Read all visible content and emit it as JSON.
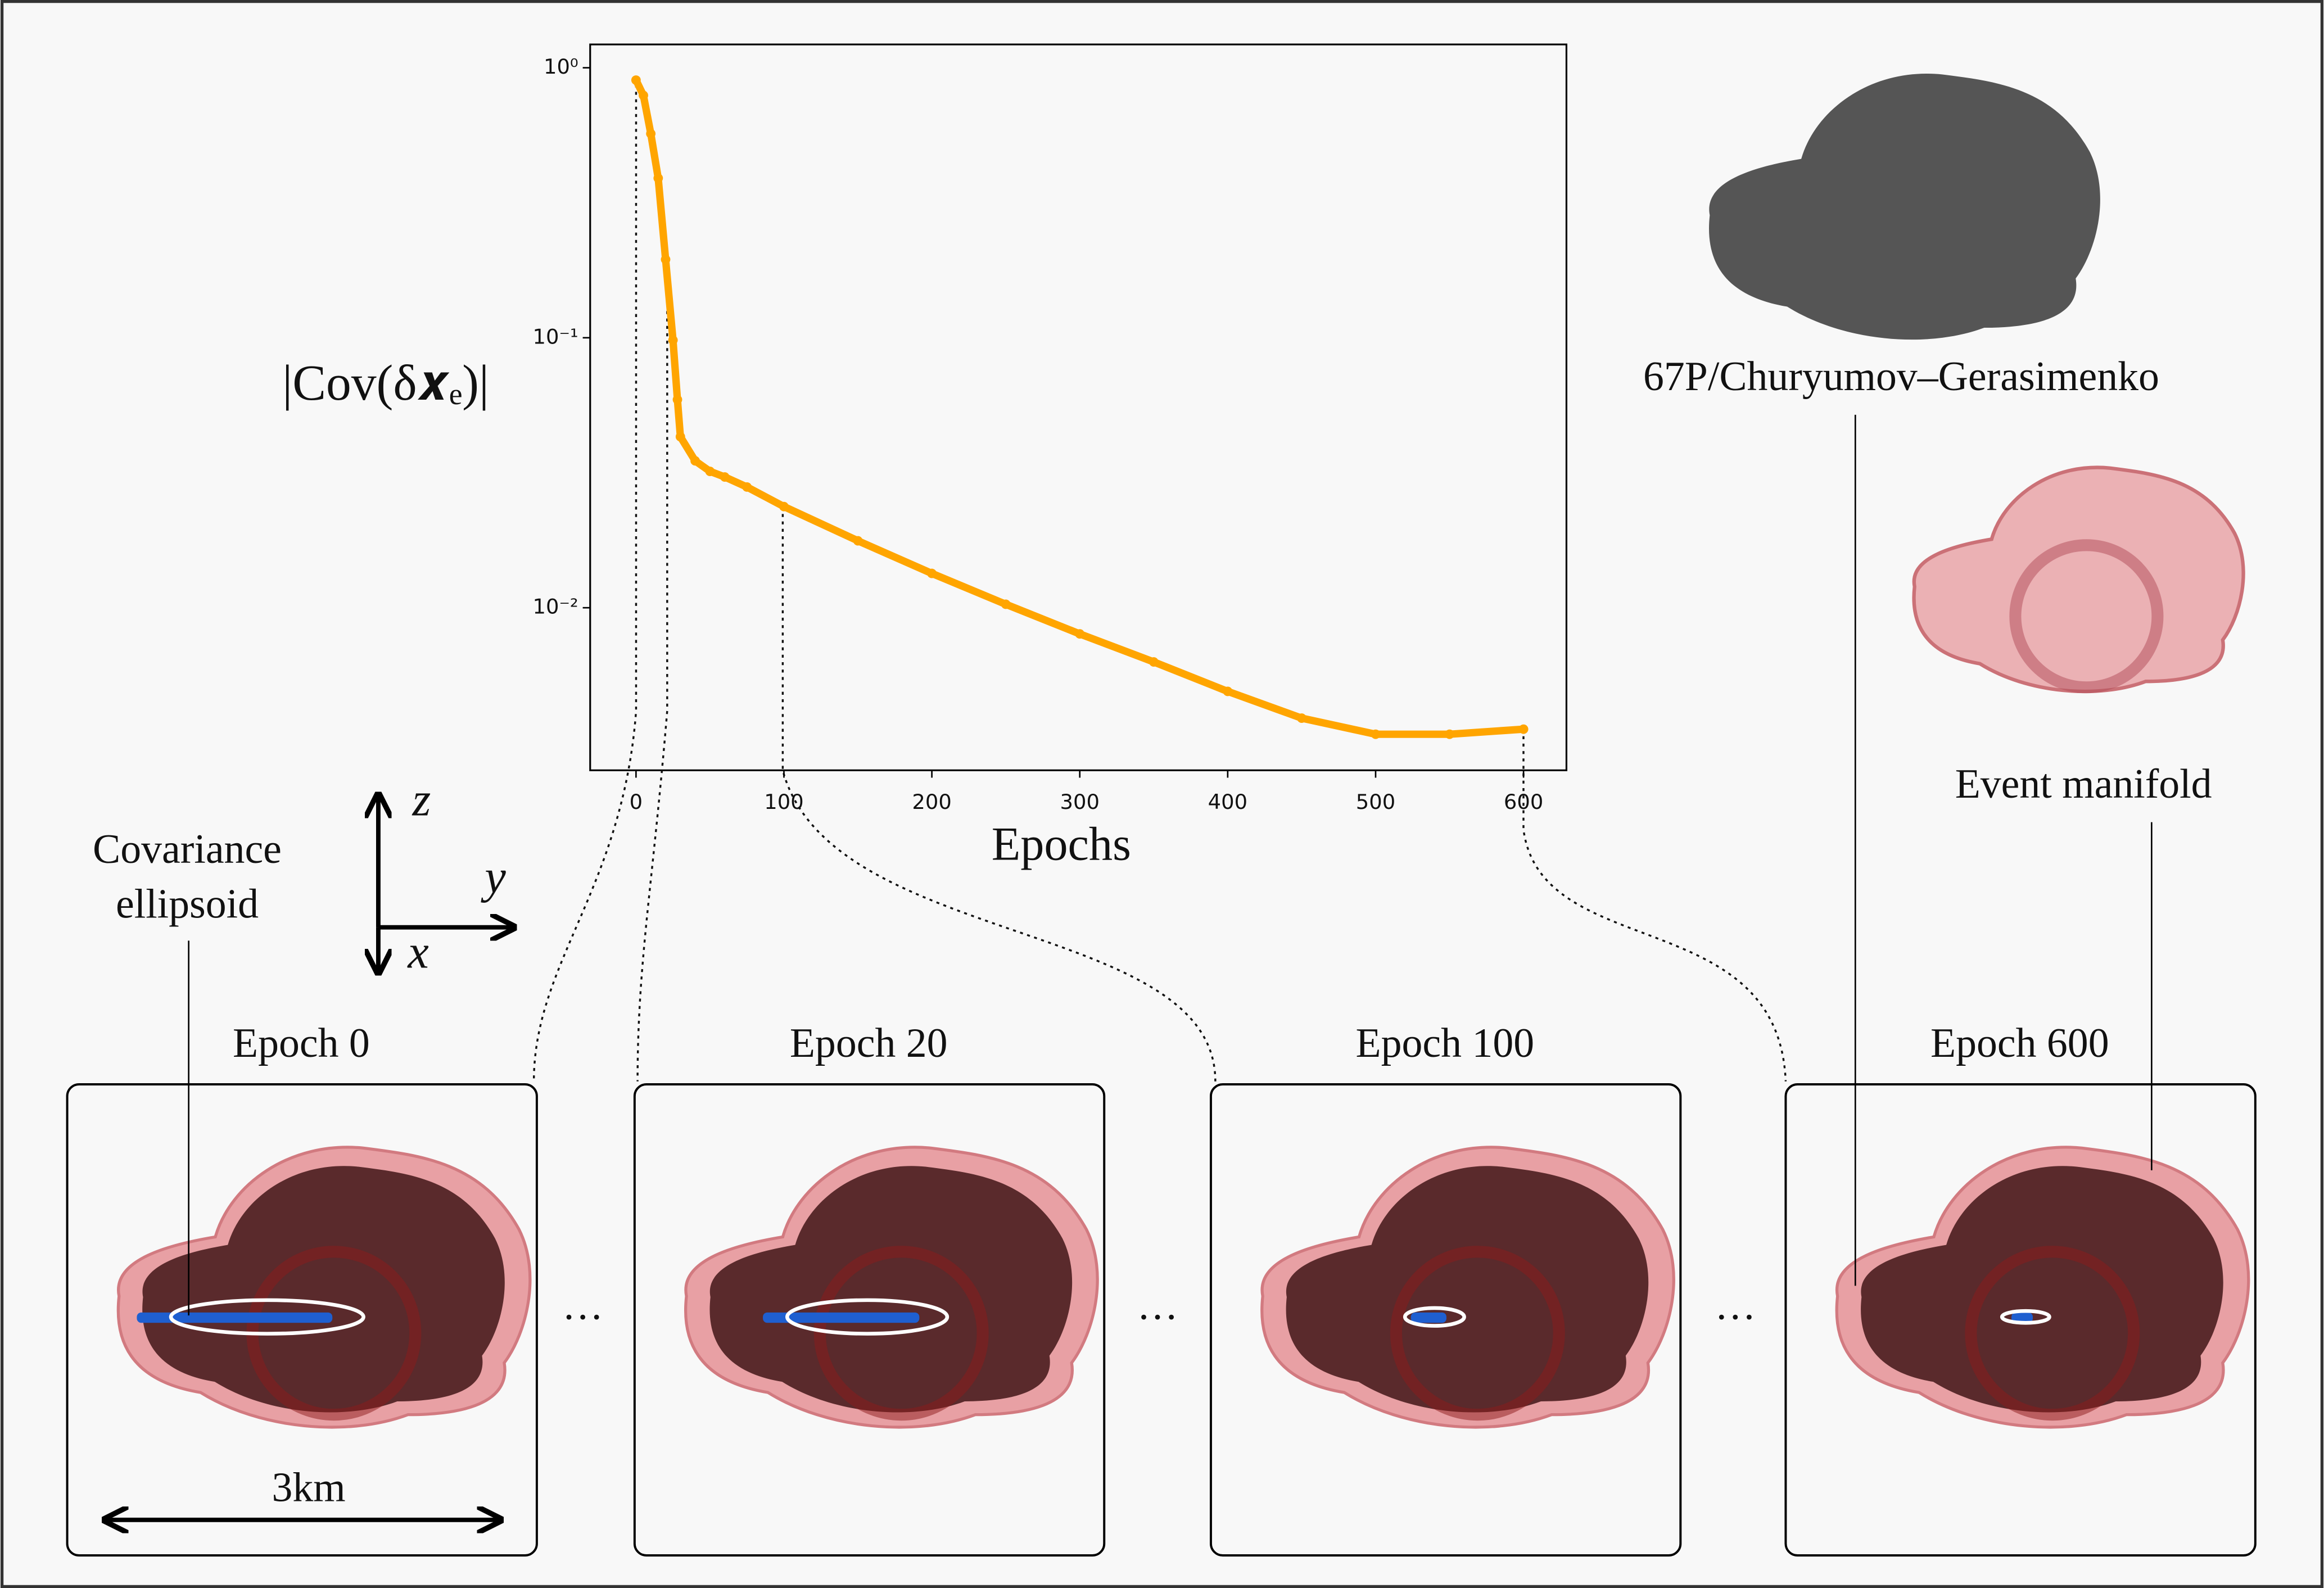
{
  "chart_data": {
    "type": "line",
    "ylabel": "|Cov(δ𝒙ₑ)|",
    "xlabel": "Epochs",
    "x": [
      0,
      5,
      10,
      15,
      20,
      25,
      28,
      30,
      40,
      50,
      60,
      75,
      100,
      150,
      200,
      250,
      300,
      350,
      400,
      450,
      500,
      550,
      600
    ],
    "series": [
      {
        "color": "#ffa500",
        "values": [
          0.9,
          0.79,
          0.57,
          0.39,
          0.195,
          0.098,
          0.059,
          0.043,
          0.035,
          0.032,
          0.0305,
          0.028,
          0.0237,
          0.0177,
          0.0134,
          0.0103,
          0.008,
          0.0063,
          0.0049,
          0.0039,
          0.0034,
          0.0034,
          0.00355
        ]
      }
    ],
    "xlim": [
      -31,
      629
    ],
    "ylim": [
      0.0025,
      1.22
    ],
    "log_y": true,
    "xticks": [
      0,
      100,
      200,
      300,
      400,
      500,
      600
    ],
    "yticks": [
      {
        "value": 1,
        "label": "10⁰"
      },
      {
        "value": 0.1,
        "label": "10⁻¹"
      },
      {
        "value": 0.01,
        "label": "10⁻²"
      }
    ]
  },
  "figure": {
    "comet_name": "67P/Churyumov–Gerasimenko",
    "manifold_label": "Event manifold",
    "covariance_label": [
      "Covariance",
      "ellipsoid"
    ],
    "axes": [
      "z",
      "y",
      "x"
    ],
    "scale": "3km",
    "panels": [
      "Epoch 0",
      "Epoch 20",
      "Epoch 100",
      "Epoch 600"
    ],
    "ellipsis": [
      "···",
      "···",
      "···"
    ]
  }
}
